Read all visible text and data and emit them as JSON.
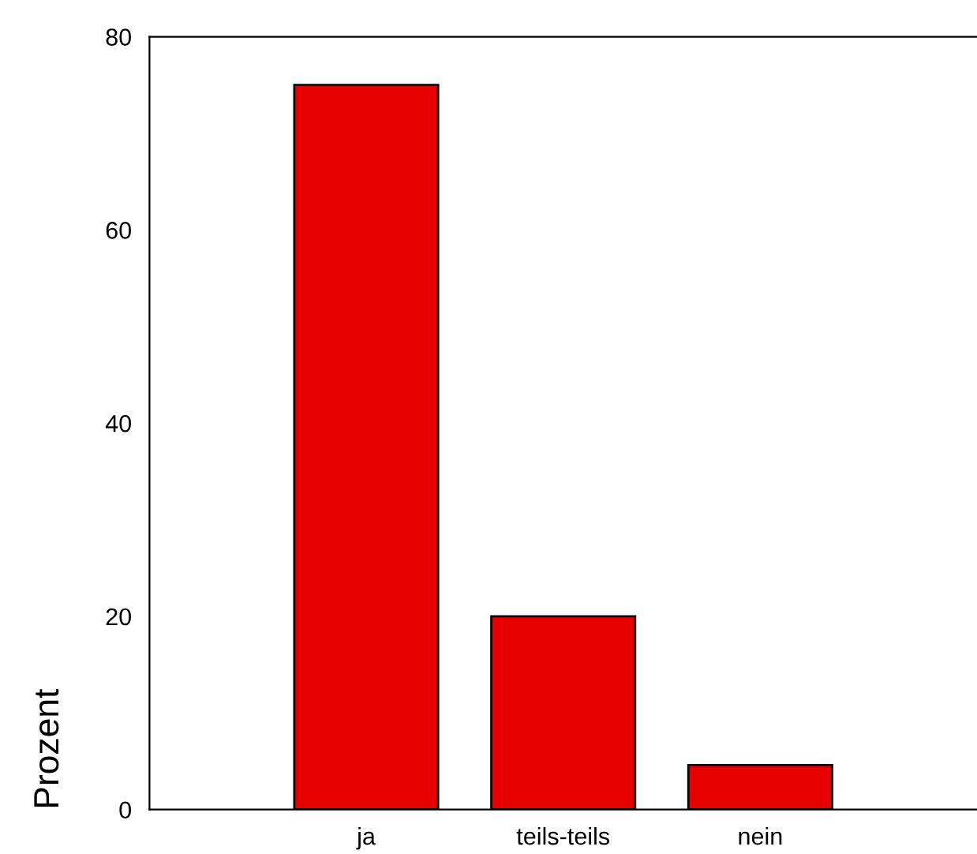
{
  "chart_data": {
    "type": "bar",
    "ylabel": "Prozent",
    "categories": [
      "ja",
      "teils-teils",
      "nein"
    ],
    "values": [
      75,
      20,
      4.6
    ],
    "color": "#e60000",
    "ylim": [
      0,
      80
    ],
    "yticks": [
      0,
      20,
      40,
      60,
      80
    ],
    "grid": false
  }
}
